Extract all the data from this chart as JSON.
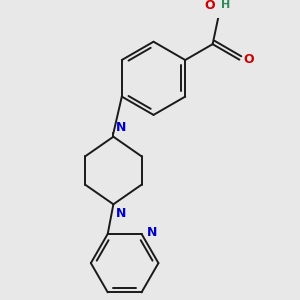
{
  "background_color": "#e8e8e8",
  "bond_color": "#1a1a1a",
  "N_color": "#0000cc",
  "O_color": "#cc0000",
  "H_color": "#2e8b57",
  "bond_width": 1.4,
  "figsize": [
    3.0,
    3.0
  ],
  "dpi": 100,
  "xlim": [
    -1.2,
    1.8
  ],
  "ylim": [
    -2.6,
    1.4
  ]
}
